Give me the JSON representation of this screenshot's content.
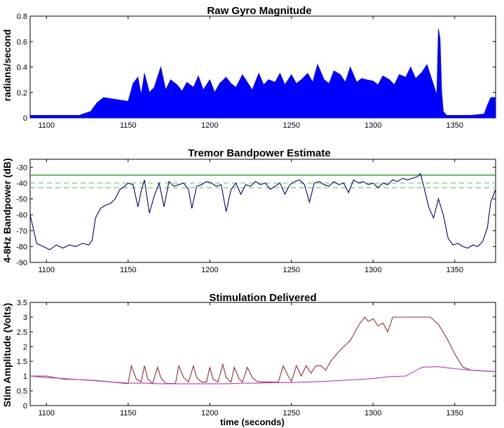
{
  "colors": {
    "gyro": "#0000ff",
    "bandpower": "#000080",
    "threshold": "#00b000",
    "threshold_dashed": "#5fd05f",
    "stim_upper": "#a52a2a",
    "stim_lower": "#cc33cc"
  },
  "xlabel": "time (seconds)",
  "chart_data": [
    {
      "type": "area",
      "title": "Raw Gyro Magnitude",
      "ylabel": "radians/second",
      "xlabel": "",
      "xlim": [
        1090,
        1375
      ],
      "ylim": [
        0,
        0.8
      ],
      "x_ticks": [
        "1100",
        "1150",
        "1200",
        "1250",
        "1300",
        "1350"
      ],
      "y_ticks": [
        "0",
        "0.2",
        "0.4",
        "0.6",
        "0.8"
      ],
      "grid": false,
      "series": [
        {
          "style": "filled-envelope",
          "x": [
            1090,
            1100,
            1110,
            1120,
            1127,
            1131,
            1135,
            1140,
            1145,
            1150,
            1153,
            1156,
            1158,
            1160,
            1163,
            1166,
            1170,
            1173,
            1176,
            1180,
            1183,
            1186,
            1190,
            1193,
            1196,
            1200,
            1203,
            1206,
            1210,
            1213,
            1216,
            1220,
            1223,
            1226,
            1230,
            1233,
            1236,
            1240,
            1243,
            1246,
            1250,
            1253,
            1256,
            1260,
            1263,
            1266,
            1270,
            1273,
            1276,
            1280,
            1283,
            1286,
            1290,
            1293,
            1296,
            1300,
            1303,
            1306,
            1310,
            1313,
            1316,
            1320,
            1323,
            1326,
            1330,
            1333,
            1336,
            1339,
            1340,
            1341,
            1342,
            1343,
            1345,
            1350,
            1360,
            1368,
            1370,
            1372,
            1375
          ],
          "values": [
            0.02,
            0.02,
            0.02,
            0.02,
            0.05,
            0.12,
            0.16,
            0.15,
            0.14,
            0.13,
            0.27,
            0.32,
            0.18,
            0.35,
            0.2,
            0.24,
            0.4,
            0.22,
            0.3,
            0.26,
            0.21,
            0.28,
            0.24,
            0.33,
            0.22,
            0.3,
            0.2,
            0.27,
            0.32,
            0.27,
            0.24,
            0.34,
            0.28,
            0.22,
            0.35,
            0.26,
            0.3,
            0.28,
            0.35,
            0.26,
            0.34,
            0.27,
            0.3,
            0.35,
            0.28,
            0.42,
            0.3,
            0.27,
            0.37,
            0.34,
            0.28,
            0.4,
            0.28,
            0.31,
            0.3,
            0.29,
            0.26,
            0.33,
            0.3,
            0.26,
            0.34,
            0.32,
            0.4,
            0.31,
            0.36,
            0.42,
            0.3,
            0.18,
            0.7,
            0.62,
            0.2,
            0.05,
            0.02,
            0.02,
            0.02,
            0.03,
            0.1,
            0.16,
            0.16
          ]
        }
      ]
    },
    {
      "type": "line",
      "title": "Tremor Bandpower Estimate",
      "ylabel": "4-8Hz Bandpower (dB)",
      "xlabel": "",
      "xlim": [
        1090,
        1375
      ],
      "ylim": [
        -90,
        -25
      ],
      "x_ticks": [
        "1100",
        "1150",
        "1200",
        "1250",
        "1300",
        "1350"
      ],
      "y_ticks": [
        "-30",
        "-40",
        "-50",
        "-60",
        "-70",
        "-80",
        "-90"
      ],
      "grid": false,
      "thresholds": [
        {
          "value": -35,
          "style": "solid"
        },
        {
          "value": -40,
          "style": "dashed"
        },
        {
          "value": -43,
          "style": "dashed"
        }
      ],
      "series": [
        {
          "x": [
            1090,
            1094,
            1098,
            1102,
            1106,
            1110,
            1114,
            1118,
            1122,
            1126,
            1128,
            1130,
            1133,
            1136,
            1139,
            1142,
            1145,
            1148,
            1150,
            1153,
            1156,
            1158,
            1160,
            1163,
            1166,
            1169,
            1172,
            1175,
            1178,
            1181,
            1184,
            1187,
            1189,
            1192,
            1195,
            1198,
            1201,
            1204,
            1207,
            1210,
            1213,
            1216,
            1219,
            1222,
            1225,
            1228,
            1231,
            1234,
            1237,
            1240,
            1243,
            1246,
            1249,
            1252,
            1255,
            1258,
            1261,
            1264,
            1267,
            1270,
            1273,
            1276,
            1279,
            1282,
            1285,
            1288,
            1291,
            1294,
            1297,
            1300,
            1303,
            1306,
            1309,
            1312,
            1315,
            1318,
            1321,
            1324,
            1327,
            1329,
            1331,
            1334,
            1337,
            1340,
            1343,
            1346,
            1349,
            1352,
            1355,
            1358,
            1361,
            1364,
            1367,
            1370,
            1372,
            1375
          ],
          "values": [
            -60,
            -78,
            -80,
            -82,
            -79,
            -81,
            -79,
            -80,
            -78,
            -79,
            -76,
            -62,
            -56,
            -54,
            -53,
            -50,
            -44,
            -42,
            -40,
            -41,
            -55,
            -45,
            -38,
            -59,
            -48,
            -40,
            -55,
            -39,
            -42,
            -41,
            -40,
            -44,
            -56,
            -42,
            -41,
            -39,
            -40,
            -42,
            -41,
            -58,
            -44,
            -40,
            -47,
            -41,
            -42,
            -39,
            -41,
            -40,
            -44,
            -42,
            -40,
            -47,
            -41,
            -39,
            -38,
            -41,
            -52,
            -40,
            -39,
            -41,
            -42,
            -39,
            -41,
            -40,
            -46,
            -38,
            -40,
            -39,
            -41,
            -40,
            -43,
            -40,
            -41,
            -38,
            -39,
            -37,
            -38,
            -37,
            -36,
            -34,
            -42,
            -55,
            -62,
            -50,
            -60,
            -75,
            -79,
            -78,
            -80,
            -81,
            -79,
            -80,
            -77,
            -68,
            -52,
            -44
          ]
        }
      ]
    },
    {
      "type": "line",
      "title": "Stimulation Delivered",
      "ylabel": "Stim Amplitude (Volts)",
      "xlabel": "time (seconds)",
      "xlim": [
        1090,
        1375
      ],
      "ylim": [
        0,
        3.5
      ],
      "x_ticks": [
        "1100",
        "1150",
        "1200",
        "1250",
        "1300",
        "1350"
      ],
      "y_ticks": [
        "0",
        "0.5",
        "1",
        "1.5",
        "2",
        "2.5",
        "3",
        "3.5"
      ],
      "grid": false,
      "series": [
        {
          "x": [
            1090,
            1100,
            1110,
            1120,
            1130,
            1140,
            1148,
            1150,
            1152,
            1155,
            1158,
            1160,
            1162,
            1165,
            1168,
            1170,
            1173,
            1176,
            1179,
            1181,
            1184,
            1187,
            1190,
            1192,
            1195,
            1198,
            1200,
            1202,
            1205,
            1208,
            1210,
            1213,
            1215,
            1218,
            1220,
            1223,
            1226,
            1229,
            1232,
            1235,
            1238,
            1242,
            1245,
            1248,
            1250,
            1253,
            1256,
            1259,
            1262,
            1265,
            1268,
            1271,
            1274,
            1277,
            1280,
            1283,
            1286,
            1289,
            1292,
            1295,
            1297,
            1300,
            1303,
            1306,
            1309,
            1312,
            1315,
            1318,
            1320,
            1325,
            1330,
            1335,
            1340,
            1345,
            1350,
            1355,
            1360,
            1375
          ],
          "values": [
            1.0,
            1.0,
            0.9,
            0.88,
            0.85,
            0.8,
            0.75,
            0.75,
            1.35,
            0.9,
            0.8,
            1.35,
            0.9,
            0.75,
            1.3,
            0.95,
            0.75,
            0.75,
            0.75,
            1.35,
            0.95,
            0.8,
            1.35,
            0.95,
            0.8,
            0.8,
            1.3,
            0.9,
            0.8,
            1.4,
            0.95,
            0.8,
            1.3,
            0.9,
            0.8,
            1.3,
            0.95,
            0.82,
            0.8,
            0.8,
            0.8,
            0.8,
            1.35,
            1.0,
            0.82,
            1.35,
            1.0,
            1.35,
            1.1,
            1.35,
            1.35,
            1.2,
            1.5,
            1.7,
            1.9,
            2.05,
            2.2,
            2.5,
            2.8,
            3.0,
            2.85,
            2.95,
            2.7,
            2.8,
            2.5,
            3.0,
            3.0,
            3.0,
            3.0,
            3.0,
            3.0,
            3.0,
            2.75,
            2.3,
            1.75,
            1.3,
            1.2,
            1.15
          ]
        },
        {
          "x": [
            1090,
            1100,
            1110,
            1120,
            1130,
            1140,
            1150,
            1160,
            1170,
            1180,
            1190,
            1200,
            1210,
            1220,
            1230,
            1240,
            1250,
            1260,
            1270,
            1280,
            1290,
            1300,
            1310,
            1320,
            1325,
            1330,
            1340,
            1350,
            1360,
            1375
          ],
          "values": [
            1.0,
            0.95,
            0.92,
            0.88,
            0.84,
            0.8,
            0.76,
            0.76,
            0.74,
            0.74,
            0.74,
            0.74,
            0.74,
            0.76,
            0.76,
            0.78,
            0.78,
            0.8,
            0.82,
            0.85,
            0.88,
            0.92,
            0.98,
            1.0,
            1.15,
            1.3,
            1.32,
            1.25,
            1.2,
            1.15
          ]
        }
      ]
    }
  ]
}
